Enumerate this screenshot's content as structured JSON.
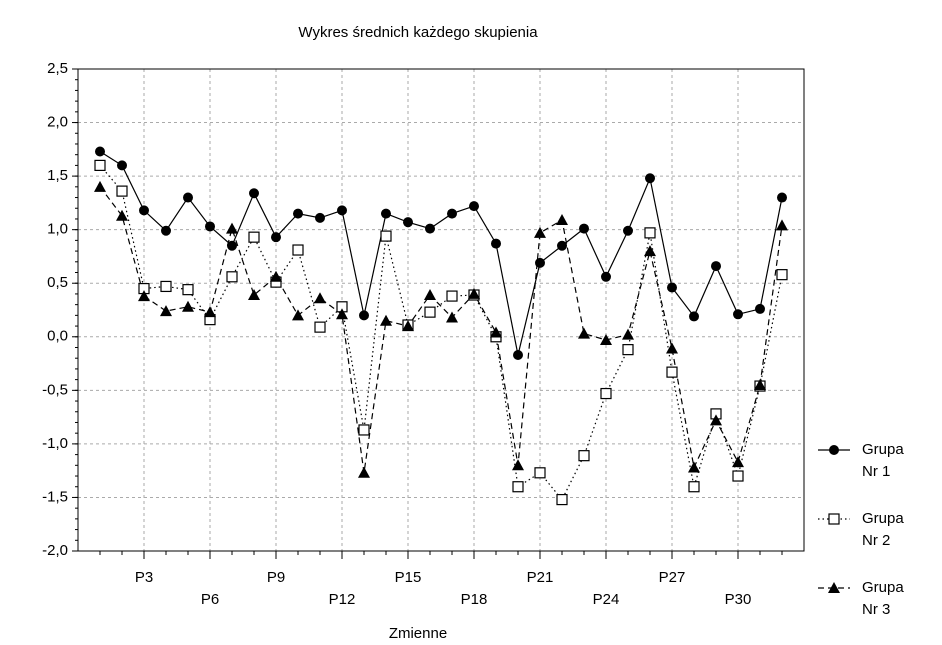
{
  "chart_data": {
    "type": "line",
    "title": "Wykres średnich każdego skupienia",
    "x_label": "Zmienne",
    "categories": [
      null,
      null,
      "P3",
      null,
      null,
      "P6",
      null,
      null,
      "P9",
      null,
      null,
      "P12",
      null,
      null,
      "P15",
      null,
      null,
      "P18",
      null,
      null,
      "P21",
      null,
      null,
      "P24",
      null,
      null,
      "P27",
      null,
      null,
      "P30",
      null,
      null
    ],
    "series": [
      {
        "name": "Grupa Nr 1",
        "color": "#000000",
        "dash": "solid",
        "marker": "circle",
        "values": [
          1.73,
          1.6,
          1.18,
          0.99,
          1.3,
          1.03,
          0.85,
          1.34,
          0.93,
          1.15,
          1.11,
          1.18,
          0.2,
          1.15,
          1.07,
          1.01,
          1.15,
          1.22,
          0.87,
          -0.17,
          0.69,
          0.85,
          1.01,
          0.56,
          0.99,
          1.48,
          0.46,
          0.19,
          0.66,
          0.21,
          0.26,
          1.3
        ]
      },
      {
        "name": "Grupa Nr 2",
        "color": "#000000",
        "dash": "dotted",
        "marker": "square",
        "values": [
          1.6,
          1.36,
          0.45,
          0.47,
          0.44,
          0.16,
          0.56,
          0.93,
          0.51,
          0.81,
          0.09,
          0.28,
          -0.87,
          0.94,
          0.11,
          0.23,
          0.38,
          0.39,
          0.0,
          -1.4,
          -1.27,
          -1.52,
          -1.11,
          -0.53,
          -0.12,
          0.97,
          -0.33,
          -1.4,
          -0.72,
          -1.3,
          -0.46,
          0.58
        ]
      },
      {
        "name": "Grupa Nr 3",
        "color": "#000000",
        "dash": "dashed",
        "marker": "triangle",
        "values": [
          1.4,
          1.13,
          0.38,
          0.24,
          0.28,
          0.23,
          1.01,
          0.39,
          0.56,
          0.2,
          0.36,
          0.21,
          -1.27,
          0.15,
          0.1,
          0.39,
          0.18,
          0.4,
          0.04,
          -1.2,
          0.97,
          1.09,
          0.03,
          -0.03,
          0.02,
          0.8,
          -0.11,
          -1.22,
          -0.78,
          -1.17,
          -0.45,
          1.04
        ]
      }
    ],
    "ylim": [
      -2.0,
      2.5
    ],
    "yticks": [
      {
        "value": -2.0,
        "label": "-2,0"
      },
      {
        "value": -1.5,
        "label": "-1,5"
      },
      {
        "value": -1.0,
        "label": "-1,0"
      },
      {
        "value": -0.5,
        "label": "-0,5"
      },
      {
        "value": 0.0,
        "label": "0,0"
      },
      {
        "value": 0.5,
        "label": "0,5"
      },
      {
        "value": 1.0,
        "label": "1,0"
      },
      {
        "value": 1.5,
        "label": "1,5"
      },
      {
        "value": 2.0,
        "label": "2,0"
      },
      {
        "value": 2.5,
        "label": "2,5"
      }
    ],
    "grid": true,
    "legend": "right"
  }
}
